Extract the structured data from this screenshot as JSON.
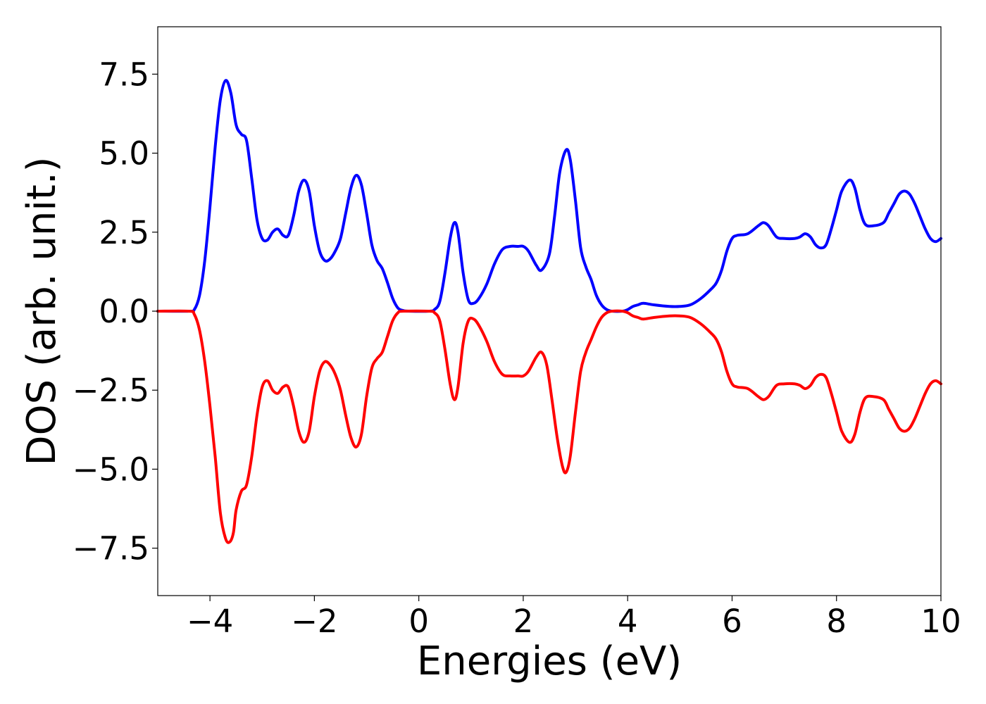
{
  "chart_data": {
    "type": "line",
    "title": "",
    "xlabel": "Energies (eV)",
    "ylabel": "DOS (arb. unit.)",
    "xlim": [
      -5,
      10
    ],
    "ylim": [
      -9,
      9
    ],
    "grid": false,
    "legend": "none",
    "x_ticks": [
      -4,
      -2,
      0,
      2,
      4,
      6,
      8,
      10
    ],
    "x_tick_labels": [
      "−4",
      "−2",
      "0",
      "2",
      "4",
      "6",
      "8",
      "10"
    ],
    "y_ticks": [
      -7.5,
      -5.0,
      -2.5,
      0.0,
      2.5,
      5.0,
      7.5
    ],
    "y_tick_labels": [
      "−7.5",
      "−5.0",
      "−2.5",
      "0.0",
      "2.5",
      "5.0",
      "7.5"
    ],
    "series": [
      {
        "color": "#0000ff",
        "points": [
          [
            -5.0,
            0.0
          ],
          [
            -4.4,
            0.0
          ],
          [
            -4.3,
            0.05
          ],
          [
            -4.2,
            0.5
          ],
          [
            -4.1,
            1.6
          ],
          [
            -4.0,
            3.3
          ],
          [
            -3.9,
            5.2
          ],
          [
            -3.8,
            6.7
          ],
          [
            -3.7,
            7.3
          ],
          [
            -3.6,
            6.9
          ],
          [
            -3.5,
            5.9
          ],
          [
            -3.4,
            5.6
          ],
          [
            -3.3,
            5.4
          ],
          [
            -3.2,
            4.2
          ],
          [
            -3.1,
            2.9
          ],
          [
            -3.0,
            2.3
          ],
          [
            -2.9,
            2.25
          ],
          [
            -2.8,
            2.5
          ],
          [
            -2.7,
            2.6
          ],
          [
            -2.6,
            2.4
          ],
          [
            -2.5,
            2.4
          ],
          [
            -2.4,
            3.0
          ],
          [
            -2.3,
            3.8
          ],
          [
            -2.2,
            4.15
          ],
          [
            -2.1,
            3.8
          ],
          [
            -2.0,
            2.7
          ],
          [
            -1.9,
            1.9
          ],
          [
            -1.8,
            1.6
          ],
          [
            -1.7,
            1.65
          ],
          [
            -1.6,
            1.9
          ],
          [
            -1.5,
            2.3
          ],
          [
            -1.4,
            3.1
          ],
          [
            -1.3,
            3.9
          ],
          [
            -1.2,
            4.3
          ],
          [
            -1.1,
            4.0
          ],
          [
            -1.0,
            3.1
          ],
          [
            -0.9,
            2.1
          ],
          [
            -0.8,
            1.6
          ],
          [
            -0.7,
            1.35
          ],
          [
            -0.6,
            0.9
          ],
          [
            -0.5,
            0.4
          ],
          [
            -0.4,
            0.1
          ],
          [
            -0.3,
            0.02
          ],
          [
            -0.2,
            0.0
          ],
          [
            0.2,
            0.0
          ],
          [
            0.3,
            0.05
          ],
          [
            0.4,
            0.3
          ],
          [
            0.5,
            1.2
          ],
          [
            0.6,
            2.3
          ],
          [
            0.68,
            2.8
          ],
          [
            0.75,
            2.5
          ],
          [
            0.85,
            1.2
          ],
          [
            0.95,
            0.35
          ],
          [
            1.05,
            0.25
          ],
          [
            1.15,
            0.4
          ],
          [
            1.3,
            0.85
          ],
          [
            1.45,
            1.5
          ],
          [
            1.6,
            1.95
          ],
          [
            1.75,
            2.05
          ],
          [
            1.9,
            2.05
          ],
          [
            2.0,
            2.05
          ],
          [
            2.1,
            1.9
          ],
          [
            2.25,
            1.45
          ],
          [
            2.35,
            1.3
          ],
          [
            2.5,
            1.8
          ],
          [
            2.6,
            3.0
          ],
          [
            2.7,
            4.4
          ],
          [
            2.82,
            5.1
          ],
          [
            2.9,
            4.8
          ],
          [
            3.0,
            3.5
          ],
          [
            3.1,
            2.0
          ],
          [
            3.2,
            1.4
          ],
          [
            3.3,
            1.0
          ],
          [
            3.4,
            0.5
          ],
          [
            3.5,
            0.2
          ],
          [
            3.6,
            0.05
          ],
          [
            3.7,
            0.0
          ],
          [
            3.9,
            0.0
          ],
          [
            4.0,
            0.05
          ],
          [
            4.1,
            0.15
          ],
          [
            4.2,
            0.2
          ],
          [
            4.3,
            0.25
          ],
          [
            4.5,
            0.2
          ],
          [
            4.8,
            0.15
          ],
          [
            5.0,
            0.15
          ],
          [
            5.2,
            0.2
          ],
          [
            5.4,
            0.4
          ],
          [
            5.6,
            0.7
          ],
          [
            5.7,
            0.9
          ],
          [
            5.8,
            1.3
          ],
          [
            5.9,
            1.9
          ],
          [
            6.0,
            2.3
          ],
          [
            6.1,
            2.4
          ],
          [
            6.3,
            2.45
          ],
          [
            6.5,
            2.7
          ],
          [
            6.6,
            2.8
          ],
          [
            6.7,
            2.7
          ],
          [
            6.85,
            2.35
          ],
          [
            7.0,
            2.3
          ],
          [
            7.2,
            2.3
          ],
          [
            7.3,
            2.35
          ],
          [
            7.4,
            2.45
          ],
          [
            7.5,
            2.35
          ],
          [
            7.6,
            2.1
          ],
          [
            7.7,
            2.0
          ],
          [
            7.8,
            2.1
          ],
          [
            7.9,
            2.6
          ],
          [
            8.0,
            3.2
          ],
          [
            8.1,
            3.8
          ],
          [
            8.25,
            4.15
          ],
          [
            8.35,
            3.9
          ],
          [
            8.45,
            3.2
          ],
          [
            8.55,
            2.75
          ],
          [
            8.7,
            2.7
          ],
          [
            8.9,
            2.8
          ],
          [
            9.0,
            3.1
          ],
          [
            9.1,
            3.4
          ],
          [
            9.2,
            3.7
          ],
          [
            9.3,
            3.8
          ],
          [
            9.4,
            3.7
          ],
          [
            9.5,
            3.4
          ],
          [
            9.6,
            3.0
          ],
          [
            9.7,
            2.6
          ],
          [
            9.8,
            2.3
          ],
          [
            9.9,
            2.2
          ],
          [
            10.0,
            2.3
          ]
        ]
      },
      {
        "color": "#ff0000",
        "points": [
          [
            -5.0,
            0.0
          ],
          [
            -4.4,
            0.0
          ],
          [
            -4.3,
            -0.1
          ],
          [
            -4.2,
            -0.6
          ],
          [
            -4.1,
            -1.6
          ],
          [
            -4.0,
            -3.0
          ],
          [
            -3.9,
            -4.6
          ],
          [
            -3.8,
            -6.4
          ],
          [
            -3.7,
            -7.2
          ],
          [
            -3.62,
            -7.3
          ],
          [
            -3.55,
            -7.0
          ],
          [
            -3.5,
            -6.3
          ],
          [
            -3.4,
            -5.7
          ],
          [
            -3.3,
            -5.5
          ],
          [
            -3.2,
            -4.6
          ],
          [
            -3.1,
            -3.3
          ],
          [
            -3.0,
            -2.4
          ],
          [
            -2.9,
            -2.2
          ],
          [
            -2.8,
            -2.5
          ],
          [
            -2.7,
            -2.6
          ],
          [
            -2.6,
            -2.4
          ],
          [
            -2.5,
            -2.4
          ],
          [
            -2.4,
            -3.0
          ],
          [
            -2.3,
            -3.8
          ],
          [
            -2.2,
            -4.15
          ],
          [
            -2.1,
            -3.8
          ],
          [
            -2.0,
            -2.7
          ],
          [
            -1.9,
            -1.9
          ],
          [
            -1.8,
            -1.6
          ],
          [
            -1.7,
            -1.7
          ],
          [
            -1.6,
            -2.0
          ],
          [
            -1.5,
            -2.5
          ],
          [
            -1.4,
            -3.3
          ],
          [
            -1.3,
            -4.0
          ],
          [
            -1.2,
            -4.3
          ],
          [
            -1.1,
            -3.9
          ],
          [
            -1.0,
            -2.7
          ],
          [
            -0.9,
            -1.8
          ],
          [
            -0.8,
            -1.5
          ],
          [
            -0.7,
            -1.3
          ],
          [
            -0.6,
            -0.8
          ],
          [
            -0.5,
            -0.3
          ],
          [
            -0.4,
            -0.05
          ],
          [
            -0.3,
            0.0
          ],
          [
            0.2,
            0.0
          ],
          [
            0.3,
            -0.05
          ],
          [
            0.4,
            -0.3
          ],
          [
            0.5,
            -1.2
          ],
          [
            0.6,
            -2.3
          ],
          [
            0.68,
            -2.8
          ],
          [
            0.75,
            -2.4
          ],
          [
            0.85,
            -1.0
          ],
          [
            0.95,
            -0.3
          ],
          [
            1.05,
            -0.25
          ],
          [
            1.15,
            -0.45
          ],
          [
            1.3,
            -0.95
          ],
          [
            1.45,
            -1.6
          ],
          [
            1.6,
            -2.0
          ],
          [
            1.75,
            -2.05
          ],
          [
            1.9,
            -2.05
          ],
          [
            2.0,
            -2.05
          ],
          [
            2.1,
            -1.9
          ],
          [
            2.25,
            -1.45
          ],
          [
            2.35,
            -1.3
          ],
          [
            2.45,
            -1.7
          ],
          [
            2.55,
            -2.8
          ],
          [
            2.65,
            -4.0
          ],
          [
            2.75,
            -4.9
          ],
          [
            2.82,
            -5.1
          ],
          [
            2.9,
            -4.6
          ],
          [
            3.0,
            -3.2
          ],
          [
            3.1,
            -1.9
          ],
          [
            3.2,
            -1.3
          ],
          [
            3.3,
            -0.9
          ],
          [
            3.4,
            -0.5
          ],
          [
            3.5,
            -0.2
          ],
          [
            3.6,
            -0.05
          ],
          [
            3.7,
            0.0
          ],
          [
            3.9,
            0.0
          ],
          [
            4.0,
            -0.05
          ],
          [
            4.1,
            -0.15
          ],
          [
            4.2,
            -0.2
          ],
          [
            4.3,
            -0.25
          ],
          [
            4.5,
            -0.2
          ],
          [
            4.8,
            -0.15
          ],
          [
            5.0,
            -0.15
          ],
          [
            5.2,
            -0.2
          ],
          [
            5.4,
            -0.4
          ],
          [
            5.6,
            -0.7
          ],
          [
            5.7,
            -0.9
          ],
          [
            5.8,
            -1.3
          ],
          [
            5.9,
            -1.9
          ],
          [
            6.0,
            -2.3
          ],
          [
            6.1,
            -2.4
          ],
          [
            6.3,
            -2.45
          ],
          [
            6.5,
            -2.7
          ],
          [
            6.6,
            -2.8
          ],
          [
            6.7,
            -2.7
          ],
          [
            6.85,
            -2.35
          ],
          [
            7.0,
            -2.3
          ],
          [
            7.2,
            -2.3
          ],
          [
            7.3,
            -2.35
          ],
          [
            7.4,
            -2.45
          ],
          [
            7.5,
            -2.35
          ],
          [
            7.6,
            -2.1
          ],
          [
            7.7,
            -2.0
          ],
          [
            7.8,
            -2.1
          ],
          [
            7.9,
            -2.6
          ],
          [
            8.0,
            -3.2
          ],
          [
            8.1,
            -3.8
          ],
          [
            8.25,
            -4.15
          ],
          [
            8.35,
            -3.9
          ],
          [
            8.45,
            -3.2
          ],
          [
            8.55,
            -2.75
          ],
          [
            8.7,
            -2.7
          ],
          [
            8.9,
            -2.8
          ],
          [
            9.0,
            -3.1
          ],
          [
            9.1,
            -3.4
          ],
          [
            9.2,
            -3.7
          ],
          [
            9.3,
            -3.8
          ],
          [
            9.4,
            -3.7
          ],
          [
            9.5,
            -3.4
          ],
          [
            9.6,
            -3.0
          ],
          [
            9.7,
            -2.6
          ],
          [
            9.8,
            -2.3
          ],
          [
            9.9,
            -2.2
          ],
          [
            10.0,
            -2.3
          ]
        ]
      }
    ]
  }
}
